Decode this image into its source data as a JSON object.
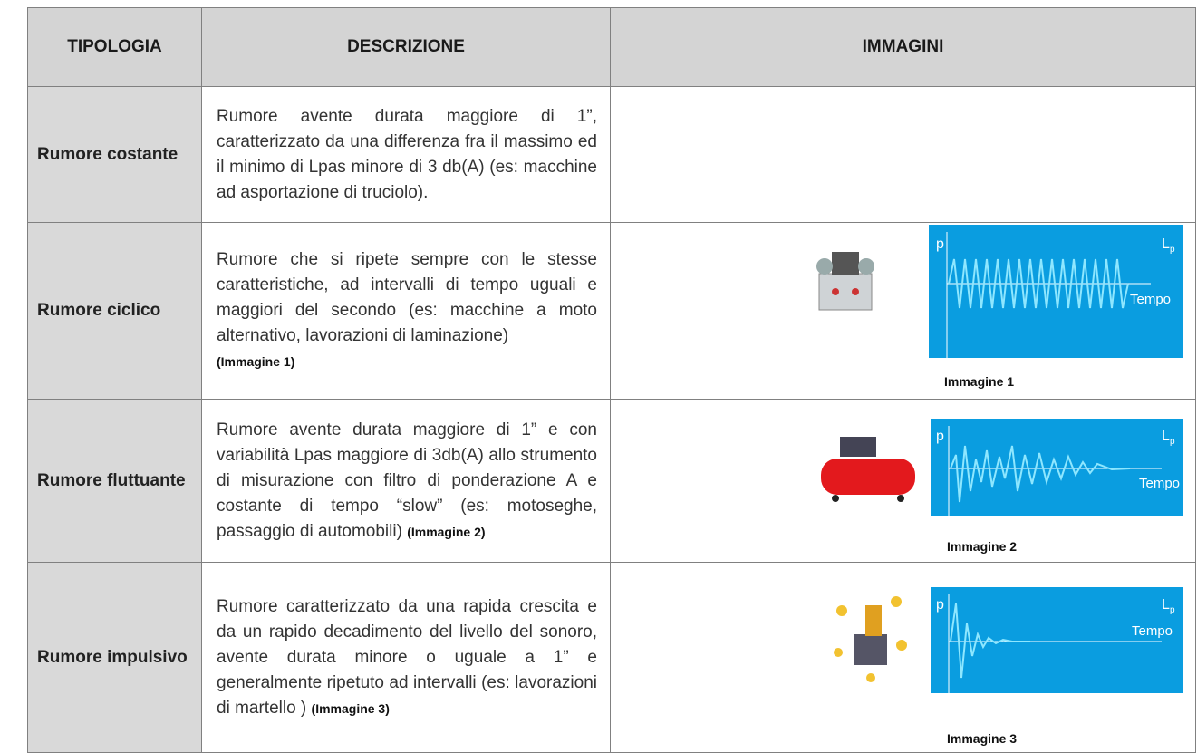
{
  "header": {
    "tipologia": "TIPOLOGIA",
    "descrizione": "DESCRIZIONE",
    "immagini": "IMMAGINI"
  },
  "rows": [
    {
      "tipologia": "Rumore costante",
      "descrizione": "Rumore avente durata maggiore di 1”, caratterizzato da una differenza fra il massimo ed il minimo di Lpas minore di 3 db(A) (es: macchine ad asportazione di truciolo)."
    },
    {
      "tipologia": "Rumore ciclico",
      "descrizione": "Rumore che si ripete sempre con le stesse caratteristiche, ad intervalli di tempo uguali e maggiori del secondo (es: macchine a moto alternativo, lavorazioni di laminazione)",
      "ref": "(Immagine 1)",
      "caption": "Immagine 1"
    },
    {
      "tipologia": "Rumore fluttuante",
      "descrizione": "Rumore avente durata maggiore di 1” e con variabilità Lpas maggiore di 3db(A) allo strumento di misurazione con filtro di ponderazione A e costante di tempo “slow” (es: motoseghe, passaggio di automobili)",
      "ref": "(Immagine 2)",
      "caption": "Immagine 2"
    },
    {
      "tipologia": "Rumore impulsivo",
      "descrizione": "Rumore caratterizzato da una rapida crescita e da un rapido decadimento del livello del sonoro, avente durata minore o uguale a 1” e generalmente ripetuto ad intervalli  (es: lavorazioni di martello )",
      "ref": "(Immagine 3)",
      "caption": "Immagine 3"
    }
  ],
  "chart_labels": {
    "y": "p",
    "level": "L",
    "sub": "p",
    "x": "Tempo"
  }
}
